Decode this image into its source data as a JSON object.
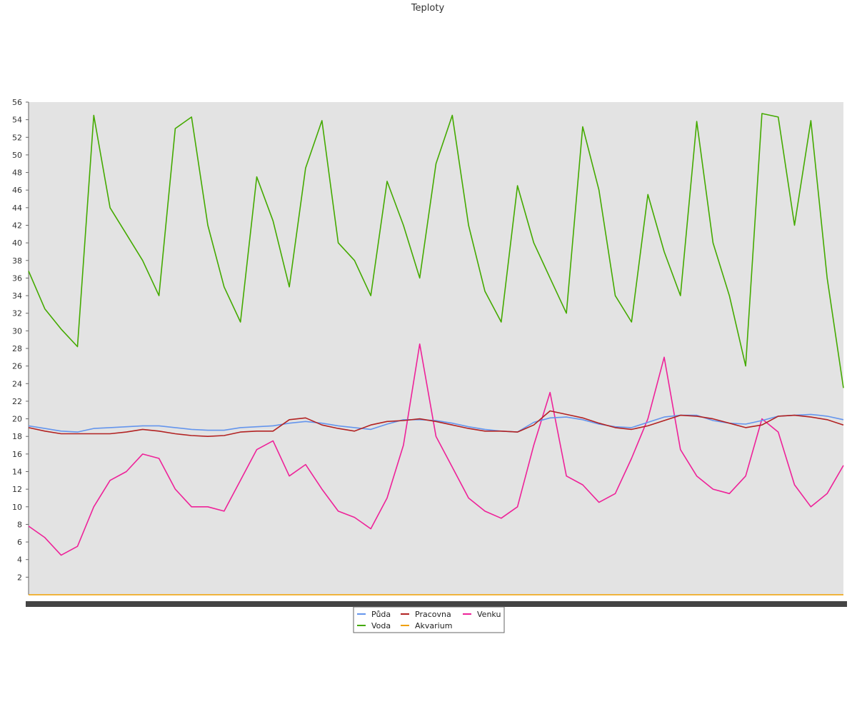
{
  "chart_data": {
    "type": "line",
    "title": "Teploty",
    "xlabel": "",
    "ylabel": "",
    "ylim": [
      0,
      56
    ],
    "yticks": [
      2,
      4,
      6,
      8,
      10,
      12,
      14,
      16,
      18,
      20,
      22,
      24,
      26,
      28,
      30,
      32,
      34,
      36,
      38,
      40,
      42,
      44,
      46,
      48,
      50,
      52,
      54,
      56
    ],
    "grid": false,
    "legend_position": "bottom-center",
    "x": [
      0,
      2,
      4,
      6,
      8,
      10,
      12,
      14,
      16,
      18,
      20,
      22,
      24,
      26,
      28,
      30,
      32,
      34,
      36,
      38,
      40,
      42,
      44,
      46,
      48,
      50,
      52,
      54,
      56,
      58,
      60,
      62,
      64,
      66,
      68,
      70,
      72,
      74,
      76,
      78,
      80,
      82,
      84,
      86,
      88,
      90,
      92,
      94,
      96,
      98,
      100
    ],
    "series": [
      {
        "name": "Půda",
        "color": "#6495ed",
        "values": [
          19.2,
          18.9,
          18.6,
          18.5,
          18.9,
          19.0,
          19.1,
          19.2,
          19.2,
          19.0,
          18.8,
          18.7,
          18.7,
          19.0,
          19.1,
          19.2,
          19.5,
          19.7,
          19.5,
          19.2,
          19.0,
          18.8,
          19.4,
          19.9,
          19.9,
          19.8,
          19.5,
          19.1,
          18.8,
          18.6,
          18.5,
          19.6,
          20.1,
          20.2,
          19.9,
          19.4,
          19.1,
          19.0,
          19.6,
          20.2,
          20.4,
          20.4,
          19.8,
          19.5,
          19.4,
          19.8,
          20.3,
          20.4,
          20.5,
          20.3,
          19.9
        ]
      },
      {
        "name": "Voda",
        "color": "#44aa00",
        "values": [
          36.8,
          32.5,
          30.2,
          28.2,
          54.5,
          44.0,
          41.0,
          38.0,
          34.0,
          53.0,
          54.3,
          42.0,
          35.0,
          31.0,
          47.5,
          42.5,
          35.0,
          48.5,
          53.9,
          40.0,
          38.0,
          34.0,
          47.0,
          42.0,
          36.0,
          49.0,
          54.5,
          42.0,
          34.5,
          31.0,
          46.5,
          40.0,
          36.0,
          32.0,
          53.2,
          46.0,
          34.0,
          31.0,
          45.5,
          39.0,
          34.0,
          53.8,
          40.0,
          34.0,
          26.0,
          54.7,
          54.3,
          42.0,
          53.9,
          36.0,
          23.5
        ]
      },
      {
        "name": "Pracovna",
        "color": "#b22222",
        "values": [
          19.0,
          18.6,
          18.3,
          18.3,
          18.3,
          18.3,
          18.5,
          18.8,
          18.6,
          18.3,
          18.1,
          18.0,
          18.1,
          18.5,
          18.6,
          18.6,
          19.9,
          20.1,
          19.3,
          18.9,
          18.6,
          19.3,
          19.7,
          19.8,
          20.0,
          19.7,
          19.3,
          18.9,
          18.6,
          18.6,
          18.5,
          19.3,
          20.9,
          20.5,
          20.1,
          19.5,
          19.0,
          18.8,
          19.2,
          19.8,
          20.4,
          20.3,
          20.0,
          19.5,
          19.0,
          19.3,
          20.3,
          20.4,
          20.2,
          19.9,
          19.3
        ]
      },
      {
        "name": "Akvarium",
        "color": "#f0a000",
        "values": [
          0,
          0,
          0,
          0,
          0,
          0,
          0,
          0,
          0,
          0,
          0,
          0,
          0,
          0,
          0,
          0,
          0,
          0,
          0,
          0,
          0,
          0,
          0,
          0,
          0,
          0,
          0,
          0,
          0,
          0,
          0,
          0,
          0,
          0,
          0,
          0,
          0,
          0,
          0,
          0,
          0,
          0,
          0,
          0,
          0,
          0,
          0,
          0,
          0,
          0,
          0
        ]
      },
      {
        "name": "Venku",
        "color": "#ee2299",
        "values": [
          7.8,
          6.5,
          4.5,
          5.5,
          10.0,
          13.0,
          14.0,
          16.0,
          15.5,
          12.0,
          10.0,
          10.0,
          9.5,
          13.0,
          16.5,
          17.5,
          13.5,
          14.8,
          12.0,
          9.5,
          8.8,
          7.5,
          11.0,
          17.0,
          28.5,
          18.0,
          14.5,
          11.0,
          9.5,
          8.7,
          10.0,
          17.0,
          23.0,
          13.5,
          12.5,
          10.5,
          11.5,
          15.5,
          20.0,
          27.0,
          16.5,
          13.5,
          12.0,
          11.5,
          13.5,
          20.0,
          18.5,
          12.5,
          10.0,
          11.5,
          14.7
        ]
      }
    ]
  }
}
